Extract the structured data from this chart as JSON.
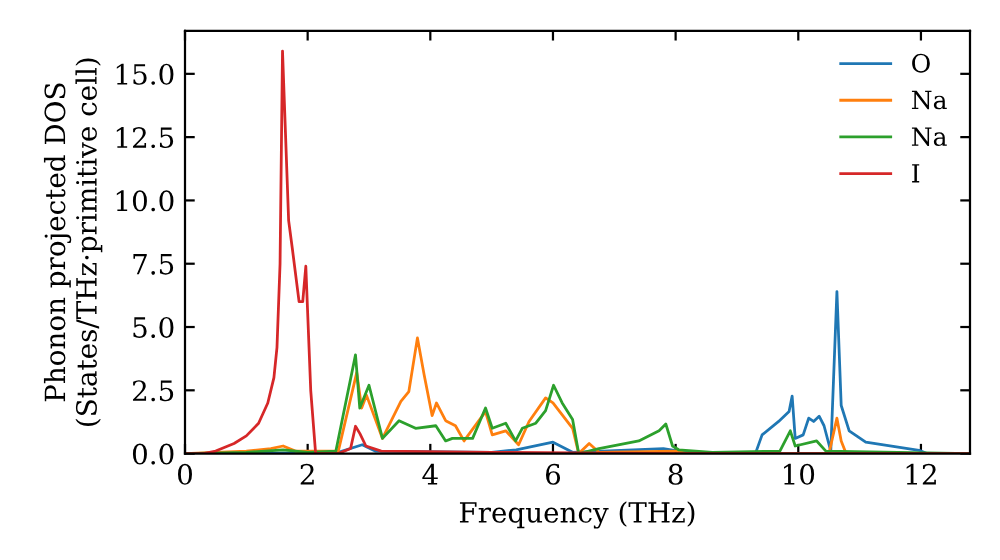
{
  "chart_data": {
    "type": "line",
    "xlabel": "Frequency (THz)",
    "ylabel": "Phonon projected DOS\n(States/THz·primitive cell)",
    "xlim": [
      0,
      12.8
    ],
    "ylim": [
      0,
      16.7
    ],
    "xticks": [
      0,
      2,
      4,
      6,
      8,
      10,
      12
    ],
    "yticks": [
      {
        "value": 0,
        "label": "0.0"
      },
      {
        "value": 2.5,
        "label": "2.5"
      },
      {
        "value": 5,
        "label": "5.0"
      },
      {
        "value": 7.5,
        "label": "7.5"
      },
      {
        "value": 10,
        "label": "10.0"
      },
      {
        "value": 12.5,
        "label": "12.5"
      },
      {
        "value": 15,
        "label": "15.0"
      }
    ],
    "legend": "top right",
    "grid": false,
    "marker": "none",
    "line_style": "solid",
    "series": [
      {
        "name": "O",
        "color": "#1f77b4",
        "x": [
          0,
          1.0,
          2.5,
          2.89,
          3.1,
          5.0,
          5.4,
          6.0,
          6.32,
          7.8,
          8.3,
          9.3,
          9.41,
          9.68,
          9.85,
          9.9,
          9.95,
          10.08,
          10.17,
          10.25,
          10.34,
          10.42,
          10.53,
          10.63,
          10.7,
          10.83,
          11.1,
          11.97,
          12.1,
          12.8
        ],
        "values": [
          0,
          0,
          0.05,
          0.35,
          0.1,
          0.05,
          0.15,
          0.45,
          0.05,
          0.2,
          0,
          0,
          0.74,
          1.27,
          1.66,
          2.27,
          0.6,
          0.74,
          1.4,
          1.27,
          1.48,
          1.1,
          0.1,
          6.4,
          1.9,
          0.9,
          0.45,
          0.13,
          0,
          0
        ]
      },
      {
        "name": "Na",
        "color": "#ff7f0e",
        "x": [
          0,
          1.0,
          1.4,
          1.6,
          1.8,
          2.5,
          2.8,
          2.88,
          2.96,
          3.22,
          3.52,
          3.65,
          3.79,
          3.9,
          4.03,
          4.1,
          4.25,
          4.41,
          4.55,
          4.9,
          5.01,
          5.23,
          5.44,
          5.61,
          5.88,
          6.0,
          6.32,
          6.42,
          6.59,
          6.75,
          8.0,
          8.2,
          10.5,
          10.63,
          10.7,
          10.78,
          12.8
        ],
        "values": [
          0,
          0.1,
          0.2,
          0.3,
          0.1,
          0.1,
          3.2,
          1.8,
          2.3,
          0.6,
          2.06,
          2.45,
          4.57,
          3.1,
          1.5,
          2.0,
          1.3,
          1.1,
          0.5,
          1.66,
          0.74,
          0.9,
          0.35,
          1.27,
          2.2,
          2.0,
          1.0,
          0,
          0.4,
          0.05,
          0.1,
          0,
          0,
          1.4,
          0.5,
          0,
          0
        ]
      },
      {
        "name": "Na",
        "color": "#2ca02c",
        "x": [
          0,
          1.0,
          1.6,
          2.0,
          2.46,
          2.78,
          2.85,
          3.0,
          3.22,
          3.49,
          3.76,
          4.09,
          4.25,
          4.36,
          4.69,
          4.9,
          5.01,
          5.23,
          5.39,
          5.5,
          5.72,
          5.88,
          6.01,
          6.15,
          6.32,
          6.42,
          6.75,
          7.4,
          7.73,
          7.84,
          7.95,
          8.05,
          8.6,
          9.7,
          9.87,
          9.95,
          10.3,
          10.45,
          12.8
        ],
        "values": [
          0,
          0.05,
          0.15,
          0.05,
          0.1,
          3.9,
          1.8,
          2.7,
          0.6,
          1.3,
          1.0,
          1.1,
          0.5,
          0.6,
          0.6,
          1.8,
          1.0,
          1.2,
          0.5,
          1.0,
          1.2,
          1.7,
          2.7,
          2.0,
          1.35,
          0,
          0.2,
          0.5,
          0.9,
          1.17,
          0.3,
          0.15,
          0.05,
          0.1,
          0.9,
          0.3,
          0.5,
          0.1,
          0
        ]
      },
      {
        "name": "I",
        "color": "#d62728",
        "x": [
          0,
          0.3,
          0.5,
          0.8,
          1.0,
          1.2,
          1.35,
          1.45,
          1.5,
          1.55,
          1.59,
          1.69,
          1.75,
          1.86,
          1.92,
          1.97,
          2.05,
          2.13,
          2.5,
          2.7,
          2.78,
          2.85,
          2.95,
          3.2,
          5.0,
          8.0,
          12.8
        ],
        "values": [
          0,
          0,
          0.1,
          0.4,
          0.7,
          1.2,
          2.0,
          3.0,
          4.2,
          7.5,
          15.9,
          9.2,
          8.1,
          6.0,
          6.0,
          7.4,
          2.5,
          0,
          0,
          0.2,
          1.08,
          0.8,
          0.3,
          0.1,
          0.05,
          0,
          0
        ]
      }
    ]
  }
}
